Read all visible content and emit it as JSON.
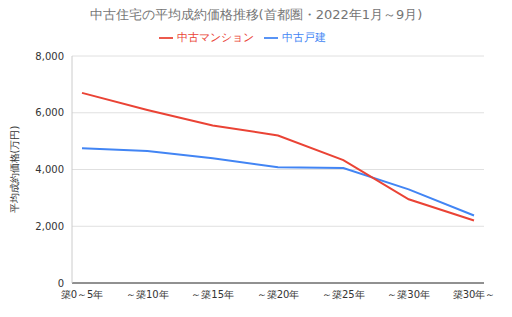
{
  "chart_data": {
    "type": "line",
    "title": "中古住宅の平均成約価格推移(首都圏・2022年1月～9月)",
    "y_label": "平均成約価格(万円)",
    "categories": [
      "築0～5年",
      "～築10年",
      "～築15年",
      "～築20年",
      "～築25年",
      "～築30年",
      "築30年～"
    ],
    "series": [
      {
        "name": "中古戸建",
        "color": "#4285f4",
        "values": [
          4750,
          4650,
          4400,
          4080,
          4050,
          3300,
          2380
        ]
      },
      {
        "name": "中古マンション",
        "color": "#ea4335",
        "values": [
          6700,
          6100,
          5550,
          5200,
          4330,
          2950,
          2200
        ]
      }
    ],
    "ylim": [
      0,
      8000
    ],
    "yticks": [
      0,
      {
        "value": 2000,
        "label": "2,000"
      },
      {
        "value": 4000,
        "label": "4,000"
      },
      {
        "value": 6000,
        "label": "6,000"
      },
      {
        "value": 8000,
        "label": "8,000"
      }
    ],
    "grid": true,
    "legend": "top"
  }
}
